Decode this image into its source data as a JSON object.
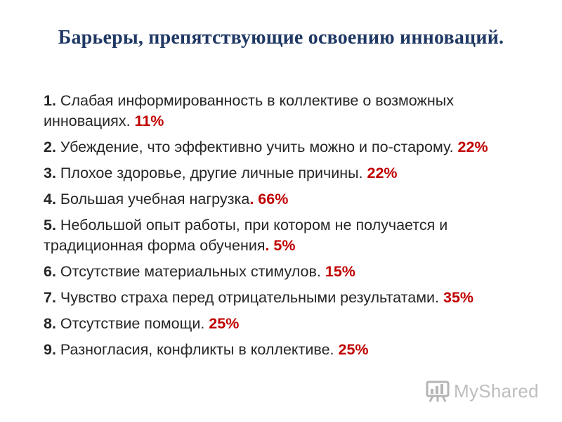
{
  "slide": {
    "title": "Барьеры, препятствующие освоению инноваций.",
    "items": [
      {
        "num": "1.",
        "text": " Слабая информированность в коллективе о возможных инновациях. ",
        "pct": "11%"
      },
      {
        "num": "2.",
        "text": " Убеждение, что эффективно учить можно и по-старому. ",
        "pct": "22%"
      },
      {
        "num": "3.",
        "text": " Плохое здоровье, другие личные причины. ",
        "pct": "22%"
      },
      {
        "num": "4.",
        "text": " Большая учебная нагрузка",
        "pct": ". 66%"
      },
      {
        "num": "5.",
        "text": " Небольшой опыт работы, при котором не получается и традиционная форма обучения",
        "pct": ". 5%"
      },
      {
        "num": "6.",
        "text": " Отсутствие материальных стимулов. ",
        "pct": "15%"
      },
      {
        "num": "7.",
        "text": " Чувство страха перед отрицательными результатами. ",
        "pct": "35%"
      },
      {
        "num": "8.",
        "text": " Отсутствие помощи. ",
        "pct": "25%"
      },
      {
        "num": "9.",
        "text": " Разногласия, конфликты в коллективе. ",
        "pct": "25%"
      }
    ]
  },
  "watermark": {
    "text": "MyShared",
    "icon": "myshared-logo-icon"
  }
}
